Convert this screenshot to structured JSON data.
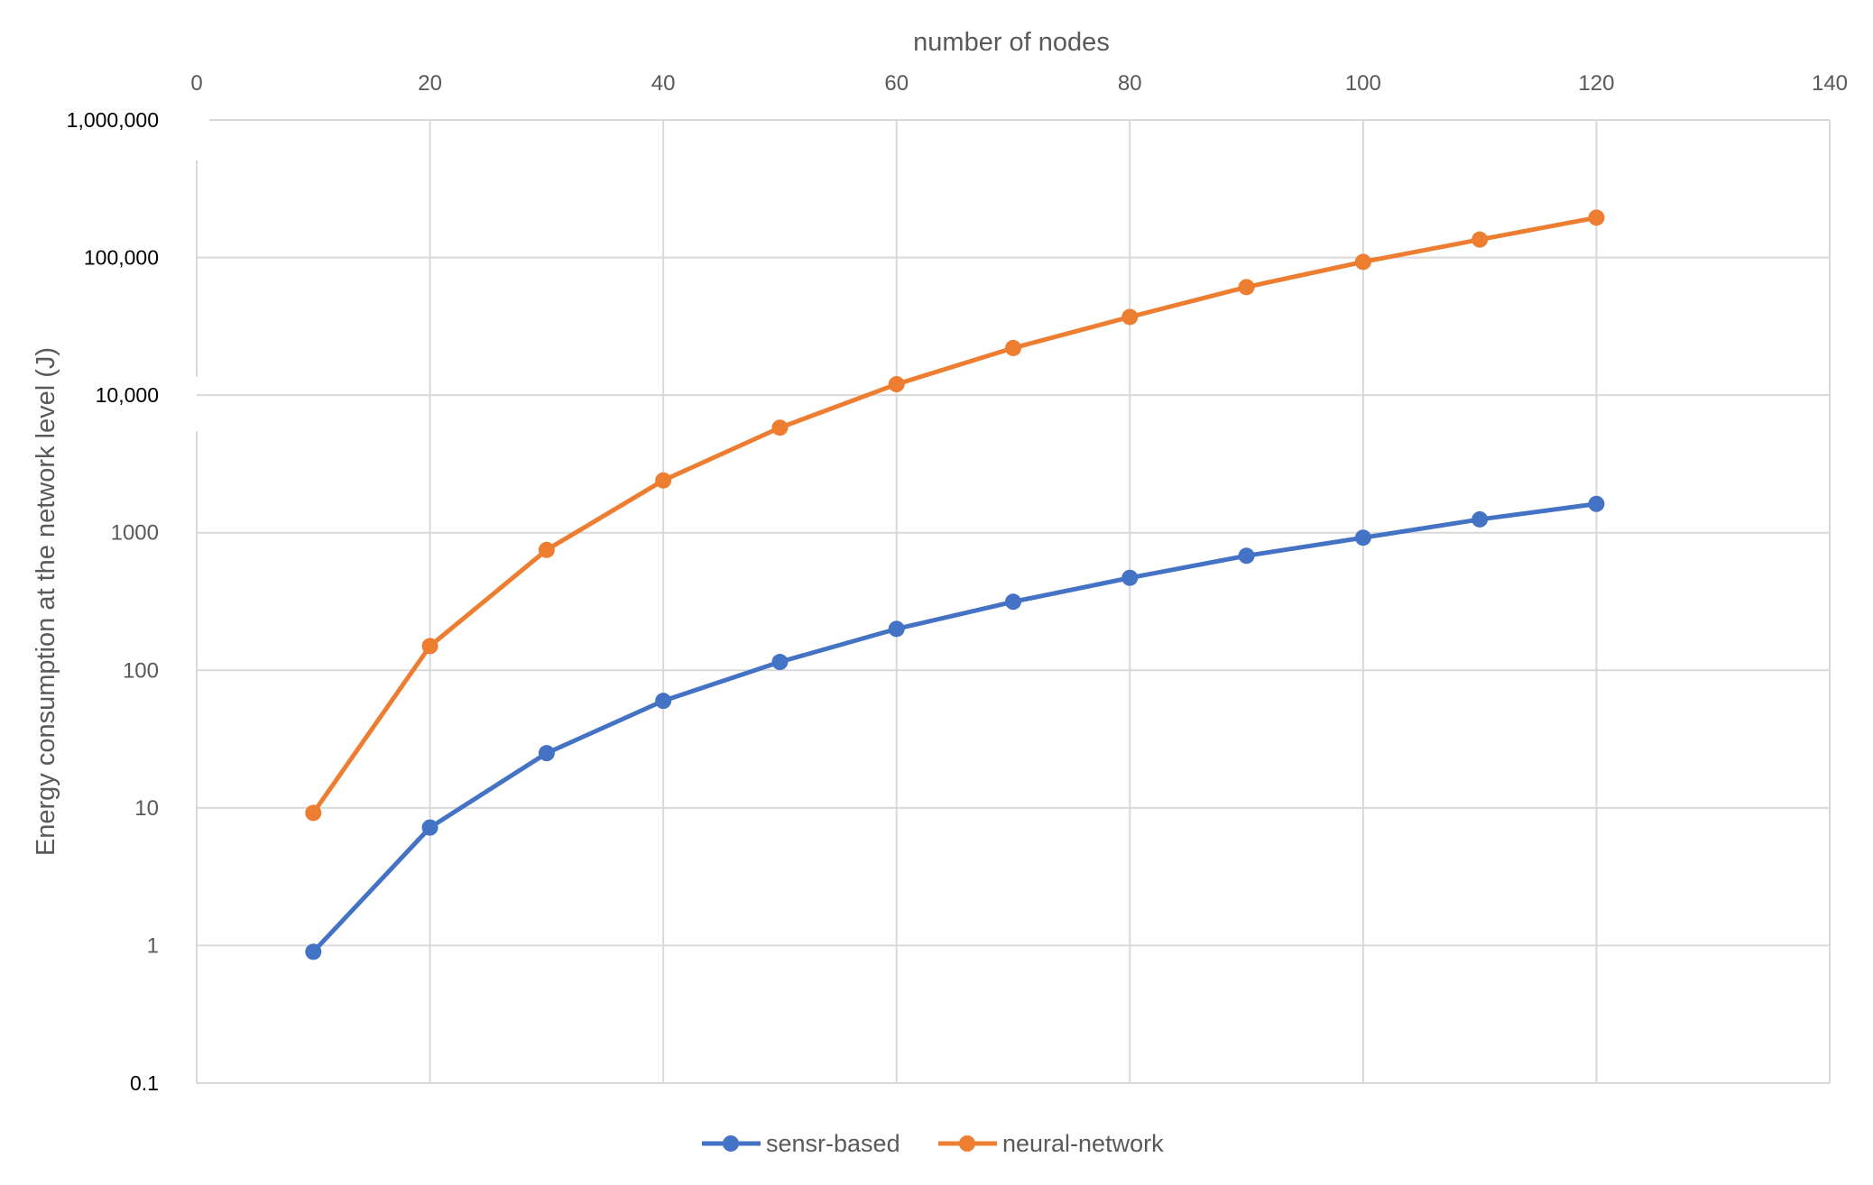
{
  "chart_data": {
    "type": "line",
    "title": "",
    "xlabel": "number of nodes",
    "ylabel": "Energy consumption at the network level (J)",
    "x_axis_position": "top",
    "xlim": [
      0,
      140
    ],
    "x_ticks": [
      0,
      20,
      40,
      60,
      80,
      100,
      120,
      140
    ],
    "x_tick_labels": [
      "0",
      "20",
      "40",
      "60",
      "80",
      "100",
      "120",
      "140"
    ],
    "y_scale": "log",
    "ylim": [
      0.1,
      1000000
    ],
    "y_ticks": [
      0.1,
      1,
      10,
      100,
      1000,
      10000,
      100000,
      1000000
    ],
    "y_tick_labels": [
      "0.1",
      "1",
      "10",
      "100",
      "1000",
      "10,000",
      "100,000",
      "1,000,000"
    ],
    "grid": true,
    "legend_position": "bottom",
    "x": [
      10,
      20,
      30,
      40,
      50,
      60,
      70,
      80,
      90,
      100,
      110,
      120
    ],
    "series": [
      {
        "name": "sensr-based",
        "color": "#4472C4",
        "values": [
          0.9,
          7.2,
          25,
          60,
          115,
          200,
          315,
          470,
          680,
          920,
          1250,
          1620
        ]
      },
      {
        "name": "neural-network",
        "color": "#ED7D31",
        "values": [
          9.2,
          150,
          750,
          2400,
          5800,
          12000,
          22000,
          37000,
          61000,
          93000,
          135000,
          195000
        ]
      }
    ]
  }
}
